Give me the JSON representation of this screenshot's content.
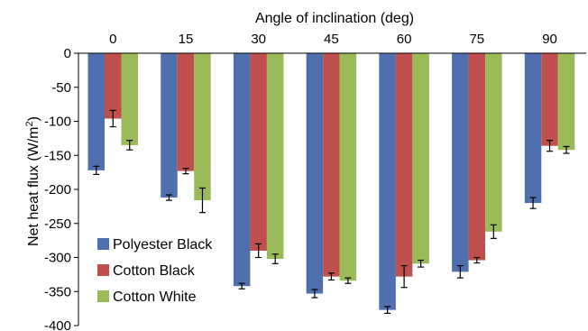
{
  "chart_data": {
    "type": "bar",
    "title": "",
    "xlabel": "Angle of inclination (deg)",
    "ylabel": "Net heat flux (W/m²)",
    "ylabel_main": "Net heat flux (W/m",
    "ylabel_sup": "2",
    "ylabel_close": ")",
    "x_axis_position": "top",
    "categories": [
      "0",
      "15",
      "30",
      "45",
      "60",
      "75",
      "90"
    ],
    "ylim": [
      -400,
      0
    ],
    "yticks": [
      0,
      -50,
      -100,
      -150,
      -200,
      -250,
      -300,
      -350,
      -400
    ],
    "ytick_labels": [
      "0",
      "-50",
      "-100",
      "-150",
      "-200",
      "-250",
      "-300",
      "-350",
      "-400"
    ],
    "grid": false,
    "legend_position": "bottom-left",
    "series": [
      {
        "name": "Polyester Black",
        "color": "#4f6fae",
        "values": [
          -172,
          -212,
          -342,
          -353,
          -377,
          -321,
          -220
        ],
        "errors": [
          6,
          4,
          4,
          6,
          5,
          9,
          8
        ]
      },
      {
        "name": "Cotton Black",
        "color": "#c0504d",
        "values": [
          -96,
          -173,
          -290,
          -328,
          -328,
          -304,
          -136
        ],
        "errors": [
          12,
          4,
          10,
          5,
          16,
          4,
          8
        ]
      },
      {
        "name": "Cotton White",
        "color": "#9bbb59",
        "values": [
          -135,
          -216,
          -302,
          -334,
          -309,
          -262,
          -142
        ],
        "errors": [
          7,
          18,
          7,
          4,
          5,
          10,
          5
        ]
      }
    ]
  }
}
